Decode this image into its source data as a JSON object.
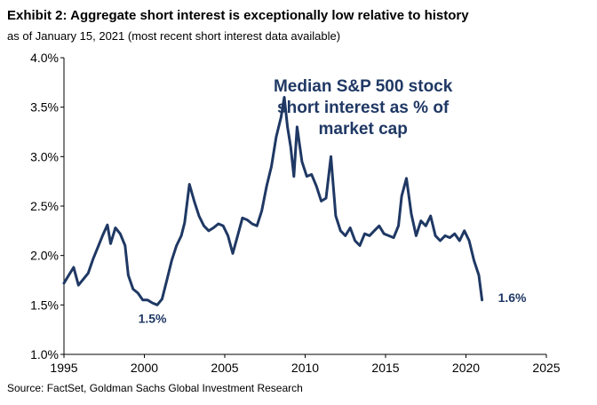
{
  "header": {
    "title": "Exhibit 2: Aggregate short interest is exceptionally low relative to history",
    "subtitle": "as of January 15, 2021 (most recent short interest data available)"
  },
  "footer": {
    "source": "Source: FactSet, Goldman Sachs Global Investment Research"
  },
  "chart_data": {
    "type": "line",
    "title": "",
    "xlabel": "",
    "ylabel": "",
    "xlim": [
      1995,
      2025
    ],
    "ylim": [
      1.0,
      4.0
    ],
    "x_ticks": [
      "1995",
      "2000",
      "2005",
      "2010",
      "2015",
      "2020",
      "2025"
    ],
    "y_ticks": [
      "1.0%",
      "1.5%",
      "2.0%",
      "2.5%",
      "3.0%",
      "3.5%",
      "4.0%"
    ],
    "grid": false,
    "legend": "none",
    "line_color": "#1f3864",
    "in_chart_label": [
      "Median S&P 500 stock",
      "short interest as % of",
      "market cap"
    ],
    "annotations": [
      {
        "text": "1.5%",
        "x": 2000.5,
        "y": 1.5
      },
      {
        "text": "1.6%",
        "x": 2021.0,
        "y": 1.55
      }
    ],
    "series": [
      {
        "x": [
          1995.0,
          1995.3,
          1995.6,
          1995.9,
          1996.2,
          1996.5,
          1996.8,
          1997.1,
          1997.4,
          1997.7,
          1997.9,
          1998.2,
          1998.5,
          1998.8,
          1999.0,
          1999.3,
          1999.6,
          1999.9,
          2000.2,
          2000.5,
          2000.8,
          2001.1,
          2001.4,
          2001.7,
          2002.0,
          2002.3,
          2002.5,
          2002.8,
          2003.1,
          2003.4,
          2003.7,
          2004.0,
          2004.3,
          2004.6,
          2004.9,
          2005.2,
          2005.5,
          2005.8,
          2006.1,
          2006.4,
          2006.7,
          2007.0,
          2007.3,
          2007.6,
          2007.9,
          2008.2,
          2008.5,
          2008.7,
          2008.9,
          2009.1,
          2009.3,
          2009.5,
          2009.8,
          2010.1,
          2010.4,
          2010.7,
          2011.0,
          2011.3,
          2011.6,
          2011.9,
          2012.2,
          2012.5,
          2012.8,
          2013.1,
          2013.4,
          2013.7,
          2014.0,
          2014.3,
          2014.6,
          2014.9,
          2015.2,
          2015.5,
          2015.8,
          2016.0,
          2016.3,
          2016.6,
          2016.9,
          2017.2,
          2017.5,
          2017.8,
          2018.1,
          2018.4,
          2018.7,
          2019.0,
          2019.3,
          2019.6,
          2019.9,
          2020.2,
          2020.5,
          2020.8,
          2021.0
        ],
        "values": [
          1.72,
          1.8,
          1.88,
          1.7,
          1.76,
          1.82,
          1.96,
          2.08,
          2.2,
          2.31,
          2.12,
          2.28,
          2.22,
          2.1,
          1.8,
          1.66,
          1.62,
          1.55,
          1.55,
          1.52,
          1.5,
          1.56,
          1.75,
          1.95,
          2.1,
          2.2,
          2.33,
          2.72,
          2.55,
          2.4,
          2.3,
          2.25,
          2.28,
          2.32,
          2.3,
          2.2,
          2.02,
          2.2,
          2.38,
          2.36,
          2.32,
          2.3,
          2.45,
          2.7,
          2.9,
          3.2,
          3.4,
          3.6,
          3.3,
          3.1,
          2.8,
          3.3,
          2.95,
          2.8,
          2.82,
          2.7,
          2.55,
          2.58,
          3.0,
          2.4,
          2.25,
          2.2,
          2.28,
          2.15,
          2.1,
          2.22,
          2.2,
          2.25,
          2.3,
          2.22,
          2.2,
          2.18,
          2.3,
          2.6,
          2.78,
          2.42,
          2.2,
          2.35,
          2.3,
          2.4,
          2.2,
          2.15,
          2.2,
          2.18,
          2.22,
          2.15,
          2.25,
          2.15,
          1.95,
          1.8,
          1.55
        ]
      }
    ]
  }
}
